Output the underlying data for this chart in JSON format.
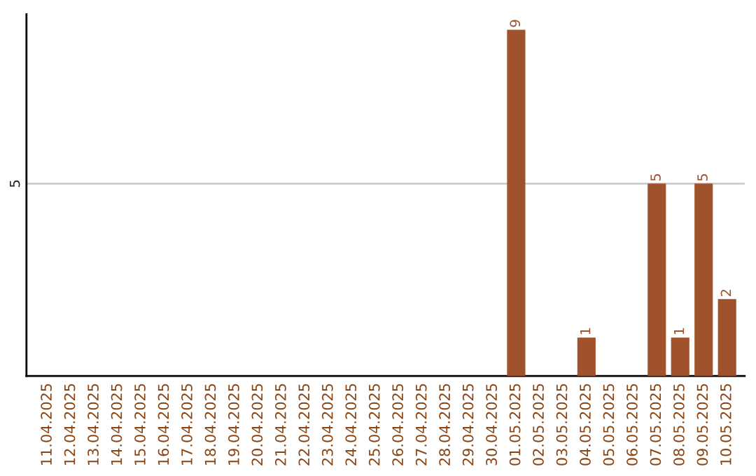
{
  "chart_data": {
    "type": "bar",
    "categories": [
      "11.04.2025",
      "12.04.2025",
      "13.04.2025",
      "14.04.2025",
      "15.04.2025",
      "16.04.2025",
      "17.04.2025",
      "18.04.2025",
      "19.04.2025",
      "20.04.2025",
      "21.04.2025",
      "22.04.2025",
      "23.04.2025",
      "24.04.2025",
      "25.04.2025",
      "26.04.2025",
      "27.04.2025",
      "28.04.2025",
      "29.04.2025",
      "30.04.2025",
      "01.05.2025",
      "02.05.2025",
      "03.05.2025",
      "04.05.2025",
      "05.05.2025",
      "06.05.2025",
      "07.05.2025",
      "08.05.2025",
      "09.05.2025",
      "10.05.2025"
    ],
    "values": [
      null,
      null,
      null,
      null,
      null,
      null,
      null,
      null,
      null,
      null,
      null,
      null,
      null,
      null,
      null,
      null,
      null,
      null,
      null,
      null,
      9,
      null,
      null,
      1,
      null,
      null,
      5,
      1,
      5,
      2
    ],
    "data_labels": true,
    "color": "#a0522d",
    "ylim": [
      0,
      9.4
    ],
    "yticks": [
      5
    ],
    "grid": "y"
  }
}
